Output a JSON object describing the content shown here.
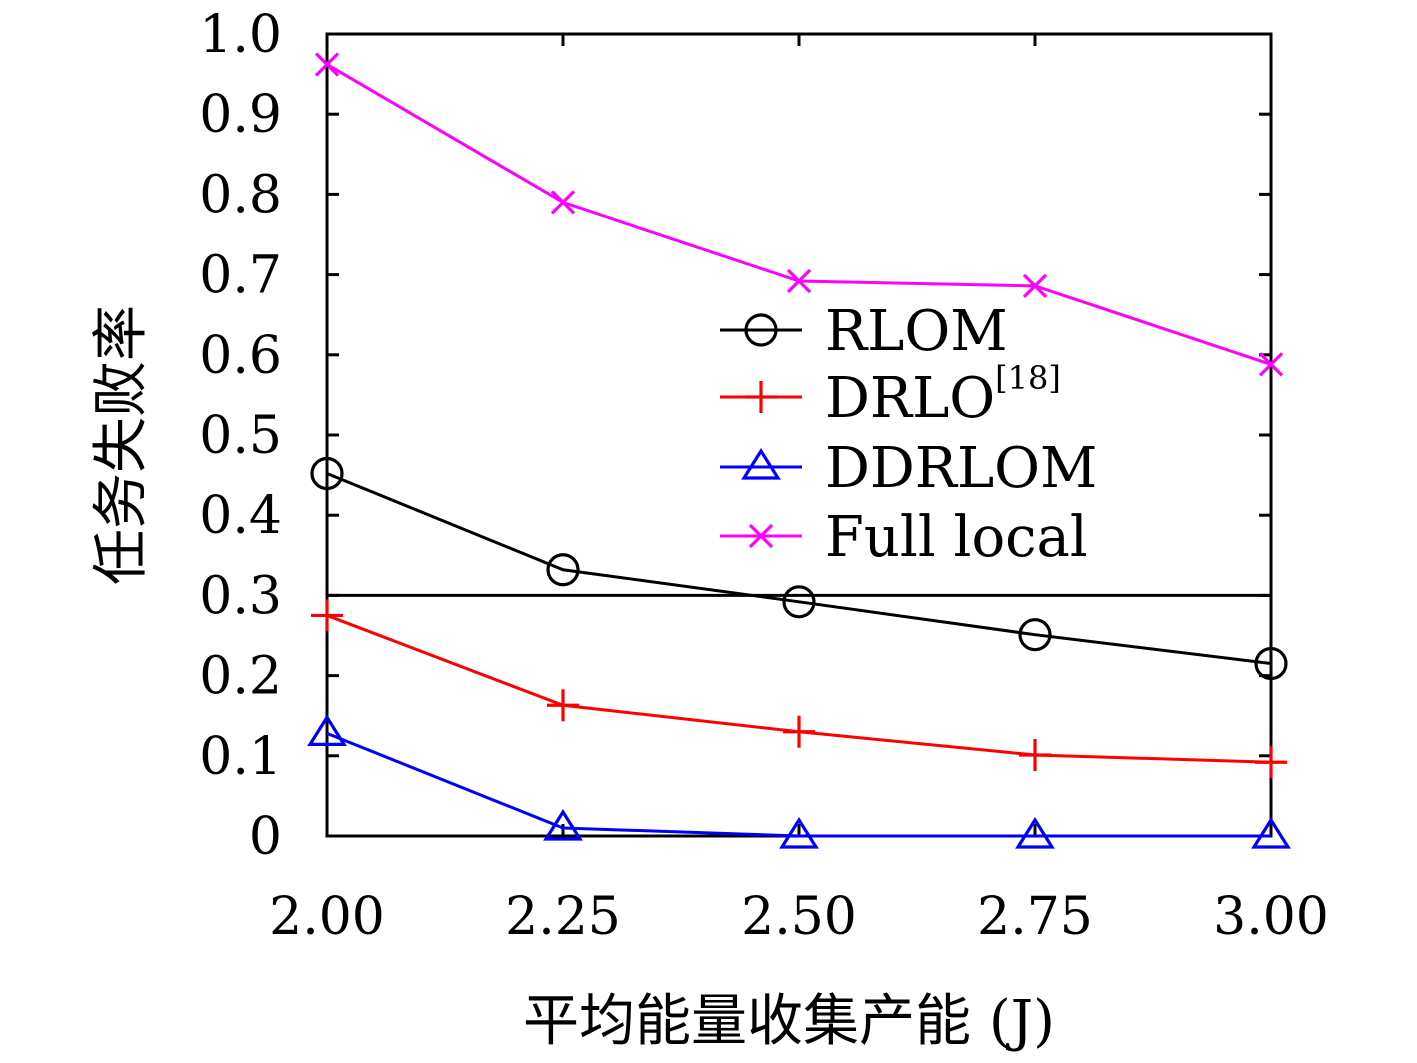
{
  "chart_data": {
    "type": "line",
    "xlabel": "平均能量收集产能 (J)",
    "ylabel": "任务失败率",
    "x": [
      2.0,
      2.25,
      2.5,
      2.75,
      3.0
    ],
    "x_tick_labels": [
      "2.00",
      "2.25",
      "2.50",
      "2.75",
      "3.00"
    ],
    "xlim": [
      2.0,
      3.0
    ],
    "ylim": [
      0,
      1.0
    ],
    "y_ticks": [
      0,
      0.1,
      0.2,
      0.3,
      0.4,
      0.5,
      0.6,
      0.7,
      0.8,
      0.9,
      1.0
    ],
    "y_tick_labels": [
      "0",
      "0.1",
      "0.2",
      "0.3",
      "0.4",
      "0.5",
      "0.6",
      "0.7",
      "0.8",
      "0.9",
      "1.0"
    ],
    "grid": false,
    "legend_position": "center-right",
    "reference_line": {
      "y": 0.3
    },
    "series": [
      {
        "name": "RLOM",
        "sup": "",
        "color": "#000000",
        "marker": "circle",
        "values": [
          0.452,
          0.332,
          0.292,
          0.251,
          0.215
        ]
      },
      {
        "name": "DRLO",
        "sup": "[18]",
        "color": "#ff0000",
        "marker": "plus",
        "values": [
          0.275,
          0.163,
          0.13,
          0.101,
          0.092
        ]
      },
      {
        "name": "DDRLOM",
        "sup": "",
        "color": "#0000ff",
        "marker": "triangle",
        "values": [
          0.128,
          0.01,
          0.0,
          0.0,
          0.0
        ]
      },
      {
        "name": "Full local",
        "sup": "",
        "color": "#ff00ff",
        "marker": "x",
        "values": [
          0.962,
          0.79,
          0.692,
          0.686,
          0.588
        ]
      }
    ]
  }
}
